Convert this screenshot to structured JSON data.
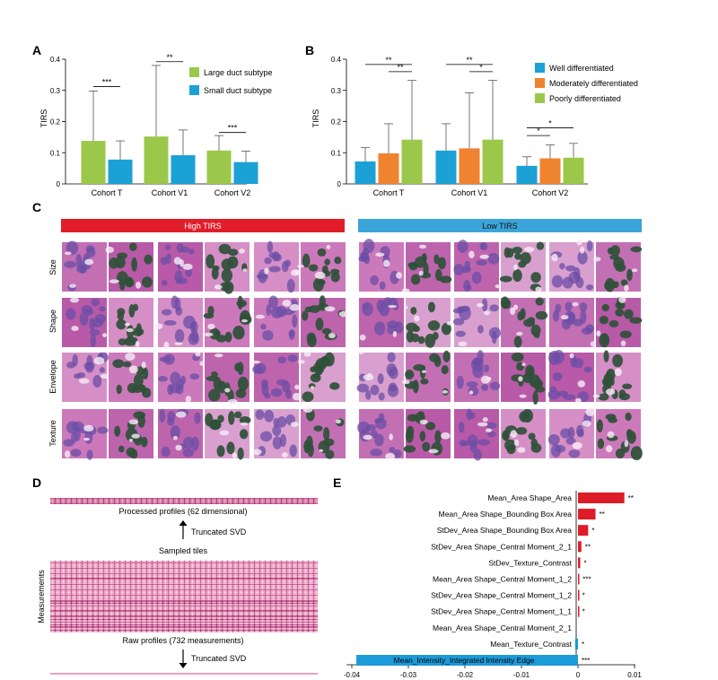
{
  "colors": {
    "large": "#9bc84a",
    "small": "#1ba1d6",
    "well": "#1ba1d6",
    "moderate": "#f08330",
    "poor": "#9bc84a",
    "high": "#e11d2a",
    "low": "#3ba5d9",
    "bar_red": "#dd1c27",
    "bar_blue": "#1b9bd8",
    "tissue": "#c36fb4",
    "nuclei": "#2f5038"
  },
  "panels": {
    "a": "A",
    "b": "B",
    "c": "C",
    "d": "D",
    "e": "E"
  },
  "chart_data": [
    {
      "id": "A",
      "type": "bar",
      "ylabel": "TIRS",
      "ylim": [
        0,
        0.4
      ],
      "yticks": [
        "0",
        "0.1",
        "0.2",
        "0.3",
        "0.4"
      ],
      "categories": [
        "Cohort T",
        "Cohort V1",
        "Cohort V2"
      ],
      "series": [
        {
          "name": "Large duct subtype",
          "values": [
            0.138,
            0.152,
            0.107
          ],
          "err": [
            0.298,
            0.38,
            0.155
          ]
        },
        {
          "name": "Small duct subtype",
          "values": [
            0.078,
            0.092,
            0.07
          ],
          "err": [
            0.138,
            0.173,
            0.105
          ]
        }
      ],
      "significance": [
        {
          "label": "***",
          "cat": 0
        },
        {
          "label": "**",
          "cat": 1
        },
        {
          "label": "***",
          "cat": 2
        }
      ]
    },
    {
      "id": "B",
      "type": "bar",
      "ylabel": "TIRS",
      "ylim": [
        0,
        0.4
      ],
      "yticks": [
        "0",
        "0.1",
        "0.2",
        "0.3",
        "0.4"
      ],
      "categories": [
        "Cohort T",
        "Cohort V1",
        "Cohort V2"
      ],
      "series": [
        {
          "name": "Well differentiated",
          "values": [
            0.072,
            0.107,
            0.058
          ],
          "err": [
            0.117,
            0.193,
            0.087
          ]
        },
        {
          "name": "Moderately differentiated",
          "values": [
            0.098,
            0.114,
            0.082
          ],
          "err": [
            0.193,
            0.292,
            0.125
          ]
        },
        {
          "name": "Poorly differentiated",
          "values": [
            0.142,
            0.142,
            0.084
          ],
          "err": [
            0.332,
            0.332,
            0.13
          ]
        }
      ],
      "significance": [
        {
          "label": "**",
          "cat": 0,
          "from": 0,
          "to": 2,
          "level": 0.383
        },
        {
          "label": "**",
          "cat": 0,
          "from": 1,
          "to": 2,
          "level": 0.36
        },
        {
          "label": "**",
          "cat": 1,
          "from": 0,
          "to": 2,
          "level": 0.383
        },
        {
          "label": "*",
          "cat": 1,
          "from": 1,
          "to": 2,
          "level": 0.36
        },
        {
          "label": "*",
          "cat": 2,
          "from": 0,
          "to": 2,
          "level": 0.18
        },
        {
          "label": "*",
          "cat": 2,
          "from": 0,
          "to": 1,
          "level": 0.155
        }
      ]
    },
    {
      "id": "E",
      "type": "bar",
      "orientation": "horizontal",
      "xlim": [
        -0.04,
        0.01
      ],
      "xticks": [
        "-0.04",
        "-0.03",
        "-0.02",
        "-0.01",
        "0",
        "0.01"
      ],
      "categories": [
        "Mean_Area Shape_Area",
        "Mean_Area Shape_Bounding Box Area",
        "StDev_Area Shape_Bounding Box Area",
        "StDev_Area Shape_Central Moment_2_1",
        "StDev_Texture_Contrast",
        "Mean_Area Shape_Central Moment_1_2",
        "StDev_Area Shape_Central Moment_1_2",
        "StDev_Area Shape_Central Moment_1_1",
        "Mean_Area Shape_Central Moment_2_1",
        "Mean_Texture_Contrast",
        "Mean_Intensity_Integrated Intensity Edge"
      ],
      "values": [
        0.0082,
        0.0031,
        0.0018,
        0.0006,
        0.0004,
        0.0002,
        0.0001,
        0.0001,
        0.0,
        -0.0005,
        -0.0392
      ],
      "significance": [
        "**",
        "**",
        "*",
        "**",
        "*",
        "***",
        "*",
        "*",
        "",
        "*",
        "***"
      ]
    }
  ],
  "panel_c": {
    "high_label": "High TIRS",
    "low_label": "Low TIRS",
    "rows": [
      "Size",
      "Shape",
      "Envelope",
      "Texture"
    ]
  },
  "panel_d": {
    "processed_label": "Processed profiles (62 dimensional)",
    "svd_top": "Truncated SVD",
    "sampled": "Sampled tiles",
    "measurements": "Measurements",
    "raw_label": "Raw profiles (732 measurements)",
    "svd_bottom": "Truncated SVD"
  }
}
